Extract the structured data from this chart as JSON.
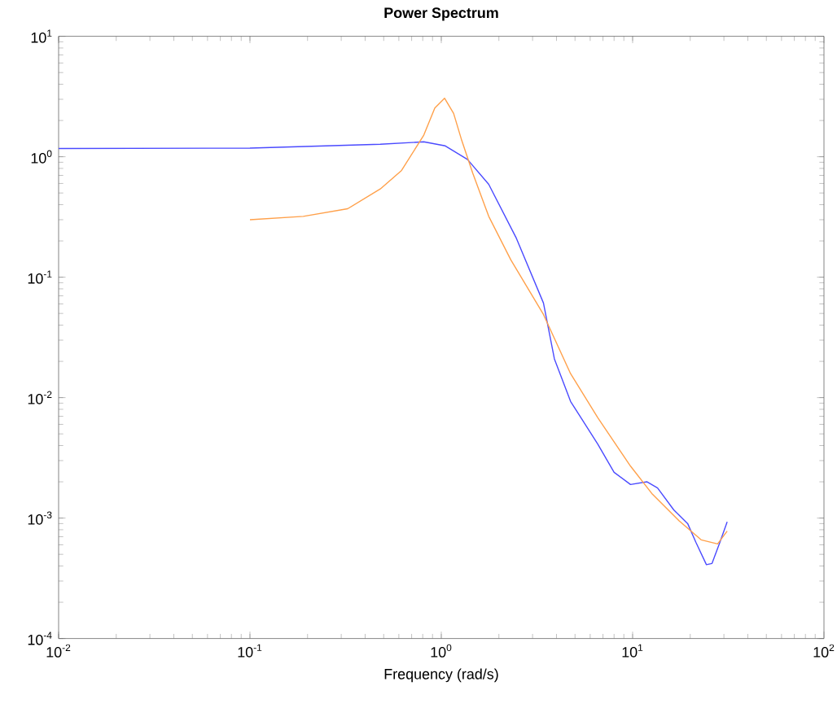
{
  "chart_data": {
    "type": "line",
    "title": "Power Spectrum",
    "xlabel": "Frequency (rad/s)",
    "log": "xy",
    "grid": false,
    "marker": "none",
    "line_style": "solid",
    "xlim": [
      0.01,
      100
    ],
    "ylim": [
      0.0001,
      10
    ],
    "xticks": [
      {
        "value": 0.01,
        "label": "10$^{-2}$"
      },
      {
        "value": 0.1,
        "label": "10$^{-1}$"
      },
      {
        "value": 1,
        "label": "10$^{0}$"
      },
      {
        "value": 10,
        "label": "10$^{1}$"
      },
      {
        "value": 100,
        "label": "10$^{2}$"
      }
    ],
    "yticks": [
      {
        "value": 0.0001,
        "label": "10$^{-4}$"
      },
      {
        "value": 0.001,
        "label": "10$^{-3}$"
      },
      {
        "value": 0.01,
        "label": "10$^{-2}$"
      },
      {
        "value": 0.1,
        "label": "10$^{-1}$"
      },
      {
        "value": 1,
        "label": "10$^{0}$"
      },
      {
        "value": 10,
        "label": "10$^{1}$"
      }
    ],
    "series": [
      {
        "color": "#4a4aff",
        "x": [
          0.01,
          0.1,
          0.48,
          0.81,
          1.05,
          1.37,
          1.77,
          2.47,
          3.42,
          3.9,
          4.74,
          6.58,
          8.0,
          9.75,
          11.9,
          13.5,
          16.4,
          19.4,
          21.4,
          24.3,
          26,
          28.6,
          31.2
        ],
        "values": [
          1.17,
          1.18,
          1.27,
          1.33,
          1.23,
          0.95,
          0.59,
          0.21,
          0.061,
          0.021,
          0.0093,
          0.0041,
          0.0024,
          0.0019,
          0.002,
          0.00178,
          0.00117,
          0.0009,
          0.00063,
          0.00041,
          0.00042,
          0.00063,
          0.00093
        ]
      },
      {
        "color": "#ffa04a",
        "x": [
          0.1,
          0.19,
          0.324,
          0.48,
          0.62,
          0.81,
          0.925,
          1.04,
          1.16,
          1.28,
          1.46,
          1.77,
          2.31,
          3.42,
          4.74,
          6.58,
          9.75,
          12.6,
          17.5,
          22.8,
          27.8,
          31.2
        ],
        "values": [
          0.3,
          0.32,
          0.37,
          0.54,
          0.77,
          1.51,
          2.54,
          3.06,
          2.29,
          1.36,
          0.73,
          0.32,
          0.139,
          0.049,
          0.0158,
          0.0068,
          0.0027,
          0.0016,
          0.00095,
          0.00066,
          0.00061,
          0.00078
        ]
      }
    ]
  }
}
